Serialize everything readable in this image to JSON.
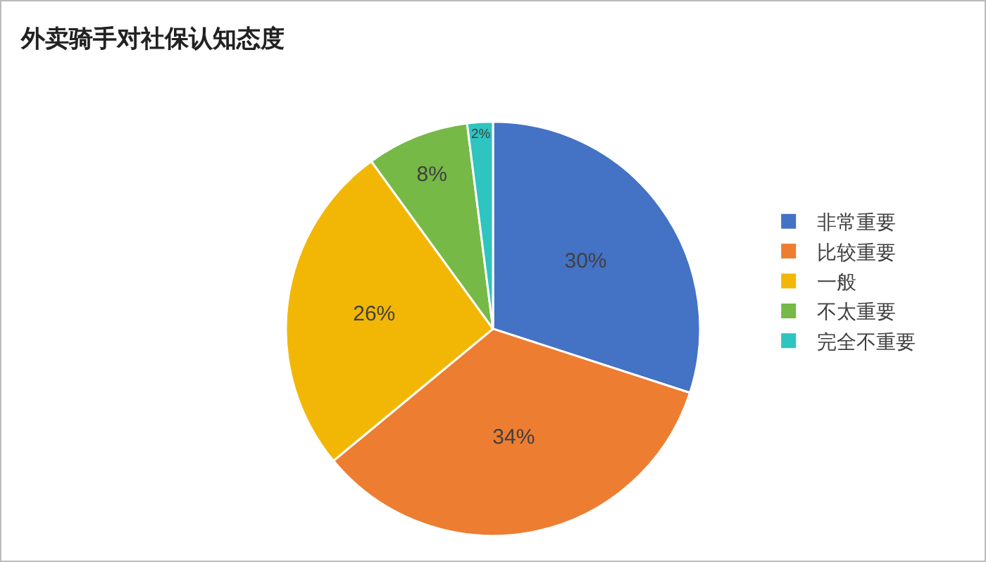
{
  "chart_data": {
    "type": "pie",
    "title": "外卖骑手对社保认知态度",
    "categories": [
      "非常重要",
      "比较重要",
      "一般",
      "不太重要",
      "完全不重要"
    ],
    "values": [
      30,
      34,
      26,
      8,
      2
    ],
    "value_labels": [
      "30%",
      "34%",
      "26%",
      "8%",
      "2%"
    ],
    "colors": [
      "#4472c4",
      "#ed7d31",
      "#f2b705",
      "#76b947",
      "#2ec4c0"
    ],
    "legend": "right"
  }
}
